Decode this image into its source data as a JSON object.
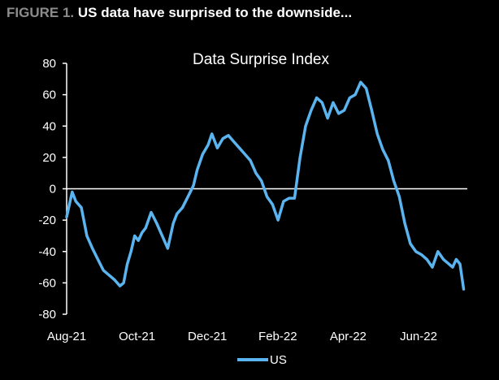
{
  "header": {
    "figure_label": "FIGURE 1.",
    "figure_title": "US data have surprised to the downside..."
  },
  "colors": {
    "series": "#5ab4f0",
    "axis": "#ffffff",
    "background": "#000000"
  },
  "chart_data": {
    "type": "line",
    "title": "Data Surprise Index",
    "xlabel": "",
    "ylabel": "",
    "ylim": [
      -80,
      80
    ],
    "yticks": [
      80,
      60,
      40,
      20,
      0,
      -20,
      -40,
      -60,
      -80
    ],
    "xtick_labels": [
      "Aug-21",
      "Oct-21",
      "Dec-21",
      "Feb-22",
      "Apr-22",
      "Jun-22"
    ],
    "x_range_months": [
      0,
      10.9
    ],
    "legend": "bottom-center",
    "series": [
      {
        "name": "US",
        "x_months": [
          0,
          0.15,
          0.25,
          0.4,
          0.55,
          0.7,
          0.85,
          1.0,
          1.15,
          1.3,
          1.45,
          1.55,
          1.65,
          1.75,
          1.85,
          1.95,
          2.05,
          2.15,
          2.3,
          2.45,
          2.6,
          2.75,
          2.9,
          3.0,
          3.15,
          3.3,
          3.45,
          3.55,
          3.7,
          3.85,
          3.95,
          4.1,
          4.25,
          4.4,
          4.55,
          4.7,
          4.85,
          5.0,
          5.15,
          5.3,
          5.45,
          5.6,
          5.75,
          5.9,
          6.05,
          6.2,
          6.35,
          6.5,
          6.65,
          6.8,
          6.95,
          7.1,
          7.25,
          7.4,
          7.55,
          7.7,
          7.85,
          8.0,
          8.15,
          8.3,
          8.45,
          8.6,
          8.75,
          8.9,
          9.05,
          9.2,
          9.35,
          9.5,
          9.65,
          9.8,
          9.95,
          10.1,
          10.25,
          10.4,
          10.5,
          10.6,
          10.7,
          10.8
        ],
        "values": [
          -18,
          -2,
          -8,
          -12,
          -30,
          -38,
          -45,
          -52,
          -55,
          -58,
          -62,
          -60,
          -48,
          -40,
          -30,
          -33,
          -28,
          -25,
          -15,
          -22,
          -30,
          -38,
          -22,
          -16,
          -12,
          -5,
          2,
          12,
          22,
          28,
          35,
          26,
          32,
          34,
          30,
          26,
          22,
          18,
          10,
          5,
          -5,
          -10,
          -20,
          -8,
          -6,
          -6,
          20,
          40,
          50,
          58,
          55,
          45,
          55,
          48,
          50,
          58,
          60,
          68,
          64,
          50,
          35,
          25,
          18,
          5,
          -5,
          -22,
          -35,
          -40,
          -42,
          -45,
          -50,
          -40,
          -45,
          -48,
          -50,
          -45,
          -48,
          -64
        ]
      }
    ]
  }
}
